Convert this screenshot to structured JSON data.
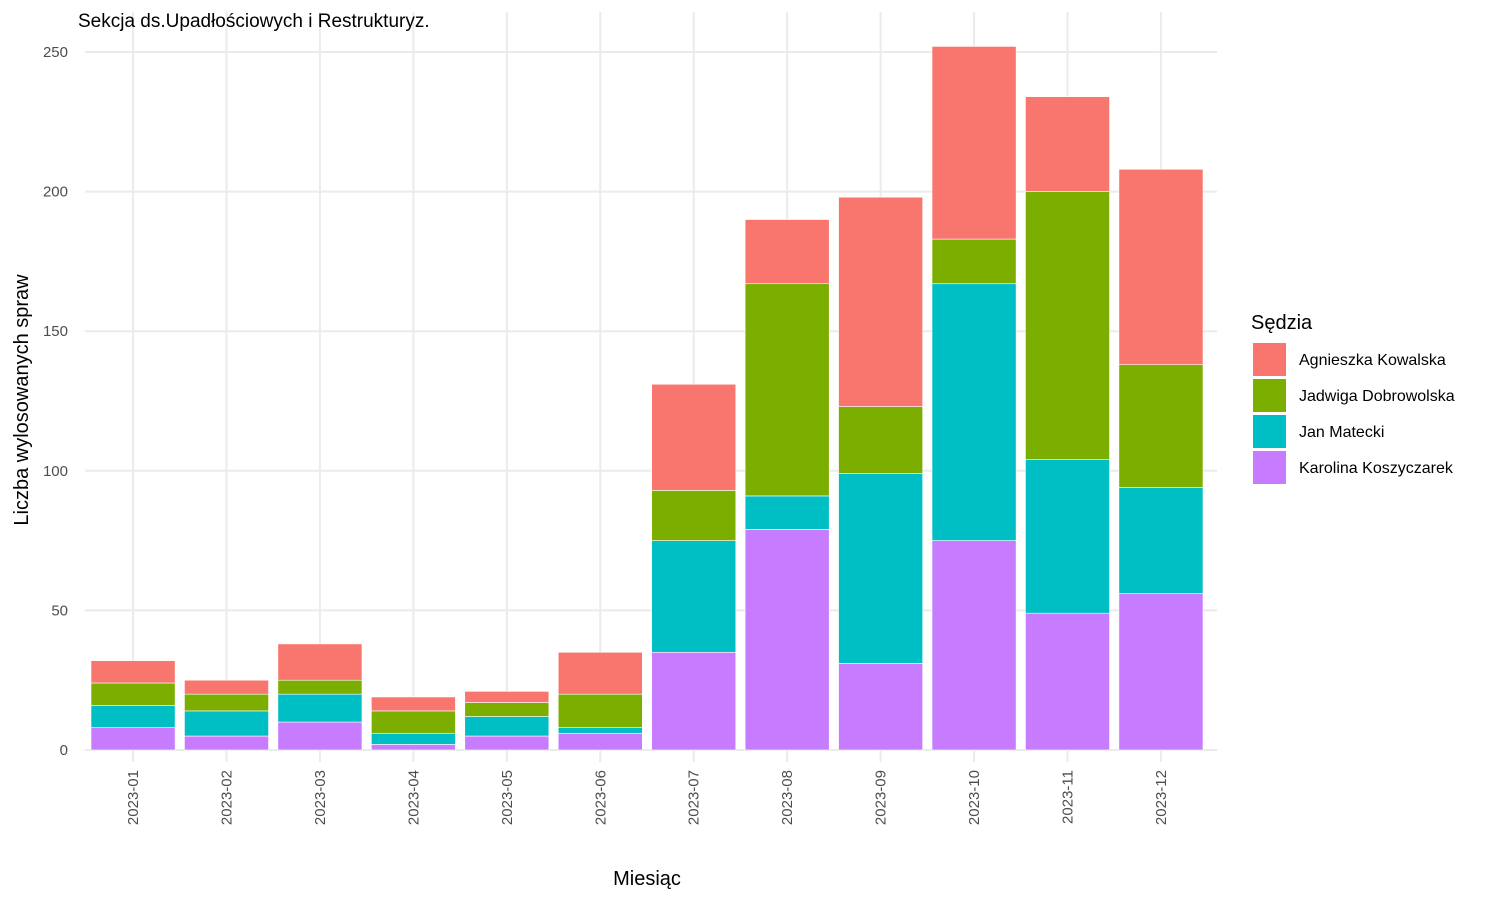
{
  "chart_data": {
    "type": "bar",
    "stacked": true,
    "title": "Sekcja ds.Upadłościowych i Restrukturyz.",
    "xlabel": "Miesiąc",
    "ylabel": "Liczba wylosowanych spraw",
    "ylim": [
      0,
      260
    ],
    "yticks": [
      0,
      50,
      100,
      150,
      200,
      250
    ],
    "grid": true,
    "legend": {
      "title": "Sędzia",
      "position": "right"
    },
    "categories": [
      "2023-01",
      "2023-02",
      "2023-03",
      "2023-04",
      "2023-05",
      "2023-06",
      "2023-07",
      "2023-08",
      "2023-09",
      "2023-10",
      "2023-11",
      "2023-12"
    ],
    "series": [
      {
        "name": "Agnieszka Kowalska",
        "color": "#F8766D",
        "values": [
          8,
          5,
          13,
          5,
          4,
          15,
          38,
          23,
          75,
          69,
          34,
          70
        ]
      },
      {
        "name": "Jadwiga Dobrowolska",
        "color": "#7CAE00",
        "values": [
          8,
          6,
          5,
          8,
          5,
          12,
          18,
          76,
          24,
          16,
          96,
          44
        ]
      },
      {
        "name": "Jan Matecki",
        "color": "#00BFC4",
        "values": [
          8,
          9,
          10,
          4,
          7,
          2,
          40,
          12,
          68,
          92,
          55,
          38
        ]
      },
      {
        "name": "Karolina Koszyczarek",
        "color": "#C77CFF",
        "values": [
          8,
          5,
          10,
          2,
          5,
          6,
          35,
          79,
          31,
          75,
          49,
          56
        ]
      }
    ],
    "stack_order_bottom_to_top": [
      "Karolina Koszyczarek",
      "Jan Matecki",
      "Jadwiga Dobrowolska",
      "Agnieszka Kowalska"
    ]
  }
}
